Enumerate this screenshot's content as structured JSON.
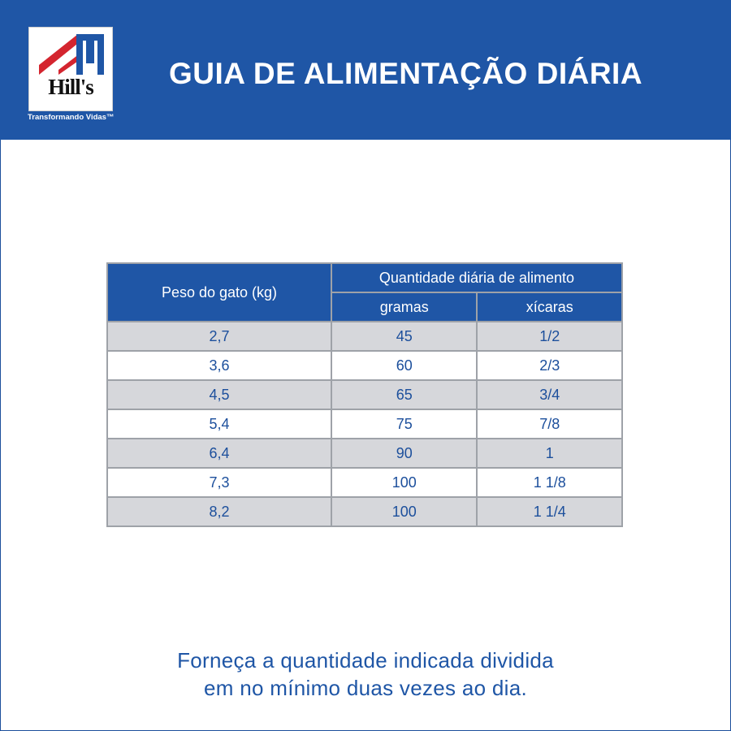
{
  "brand": {
    "logo_text": "Hill's",
    "tagline": "Transformando Vidas™"
  },
  "header": {
    "title": "GUIA DE ALIMENTAÇÃO DIÁRIA"
  },
  "table": {
    "col_weight": "Peso do gato (kg)",
    "col_group": "Quantidade diária de alimento",
    "col_grams": "gramas",
    "col_cups": "xícaras",
    "rows": [
      {
        "weight": "2,7",
        "grams": "45",
        "cups": "1/2"
      },
      {
        "weight": "3,6",
        "grams": "60",
        "cups": "2/3"
      },
      {
        "weight": "4,5",
        "grams": "65",
        "cups": "3/4"
      },
      {
        "weight": "5,4",
        "grams": "75",
        "cups": "7/8"
      },
      {
        "weight": "6,4",
        "grams": "90",
        "cups": "1"
      },
      {
        "weight": "7,3",
        "grams": "100",
        "cups": "1 1/8"
      },
      {
        "weight": "8,2",
        "grams": "100",
        "cups": "1 1/4"
      }
    ]
  },
  "footer": {
    "line1": "Forneça a quantidade indicada dividida",
    "line2": "em no mínimo duas vezes ao dia."
  },
  "colors": {
    "brand_blue": "#1f56a6",
    "row_gray": "#d6d7db",
    "logo_red": "#d4252f"
  }
}
